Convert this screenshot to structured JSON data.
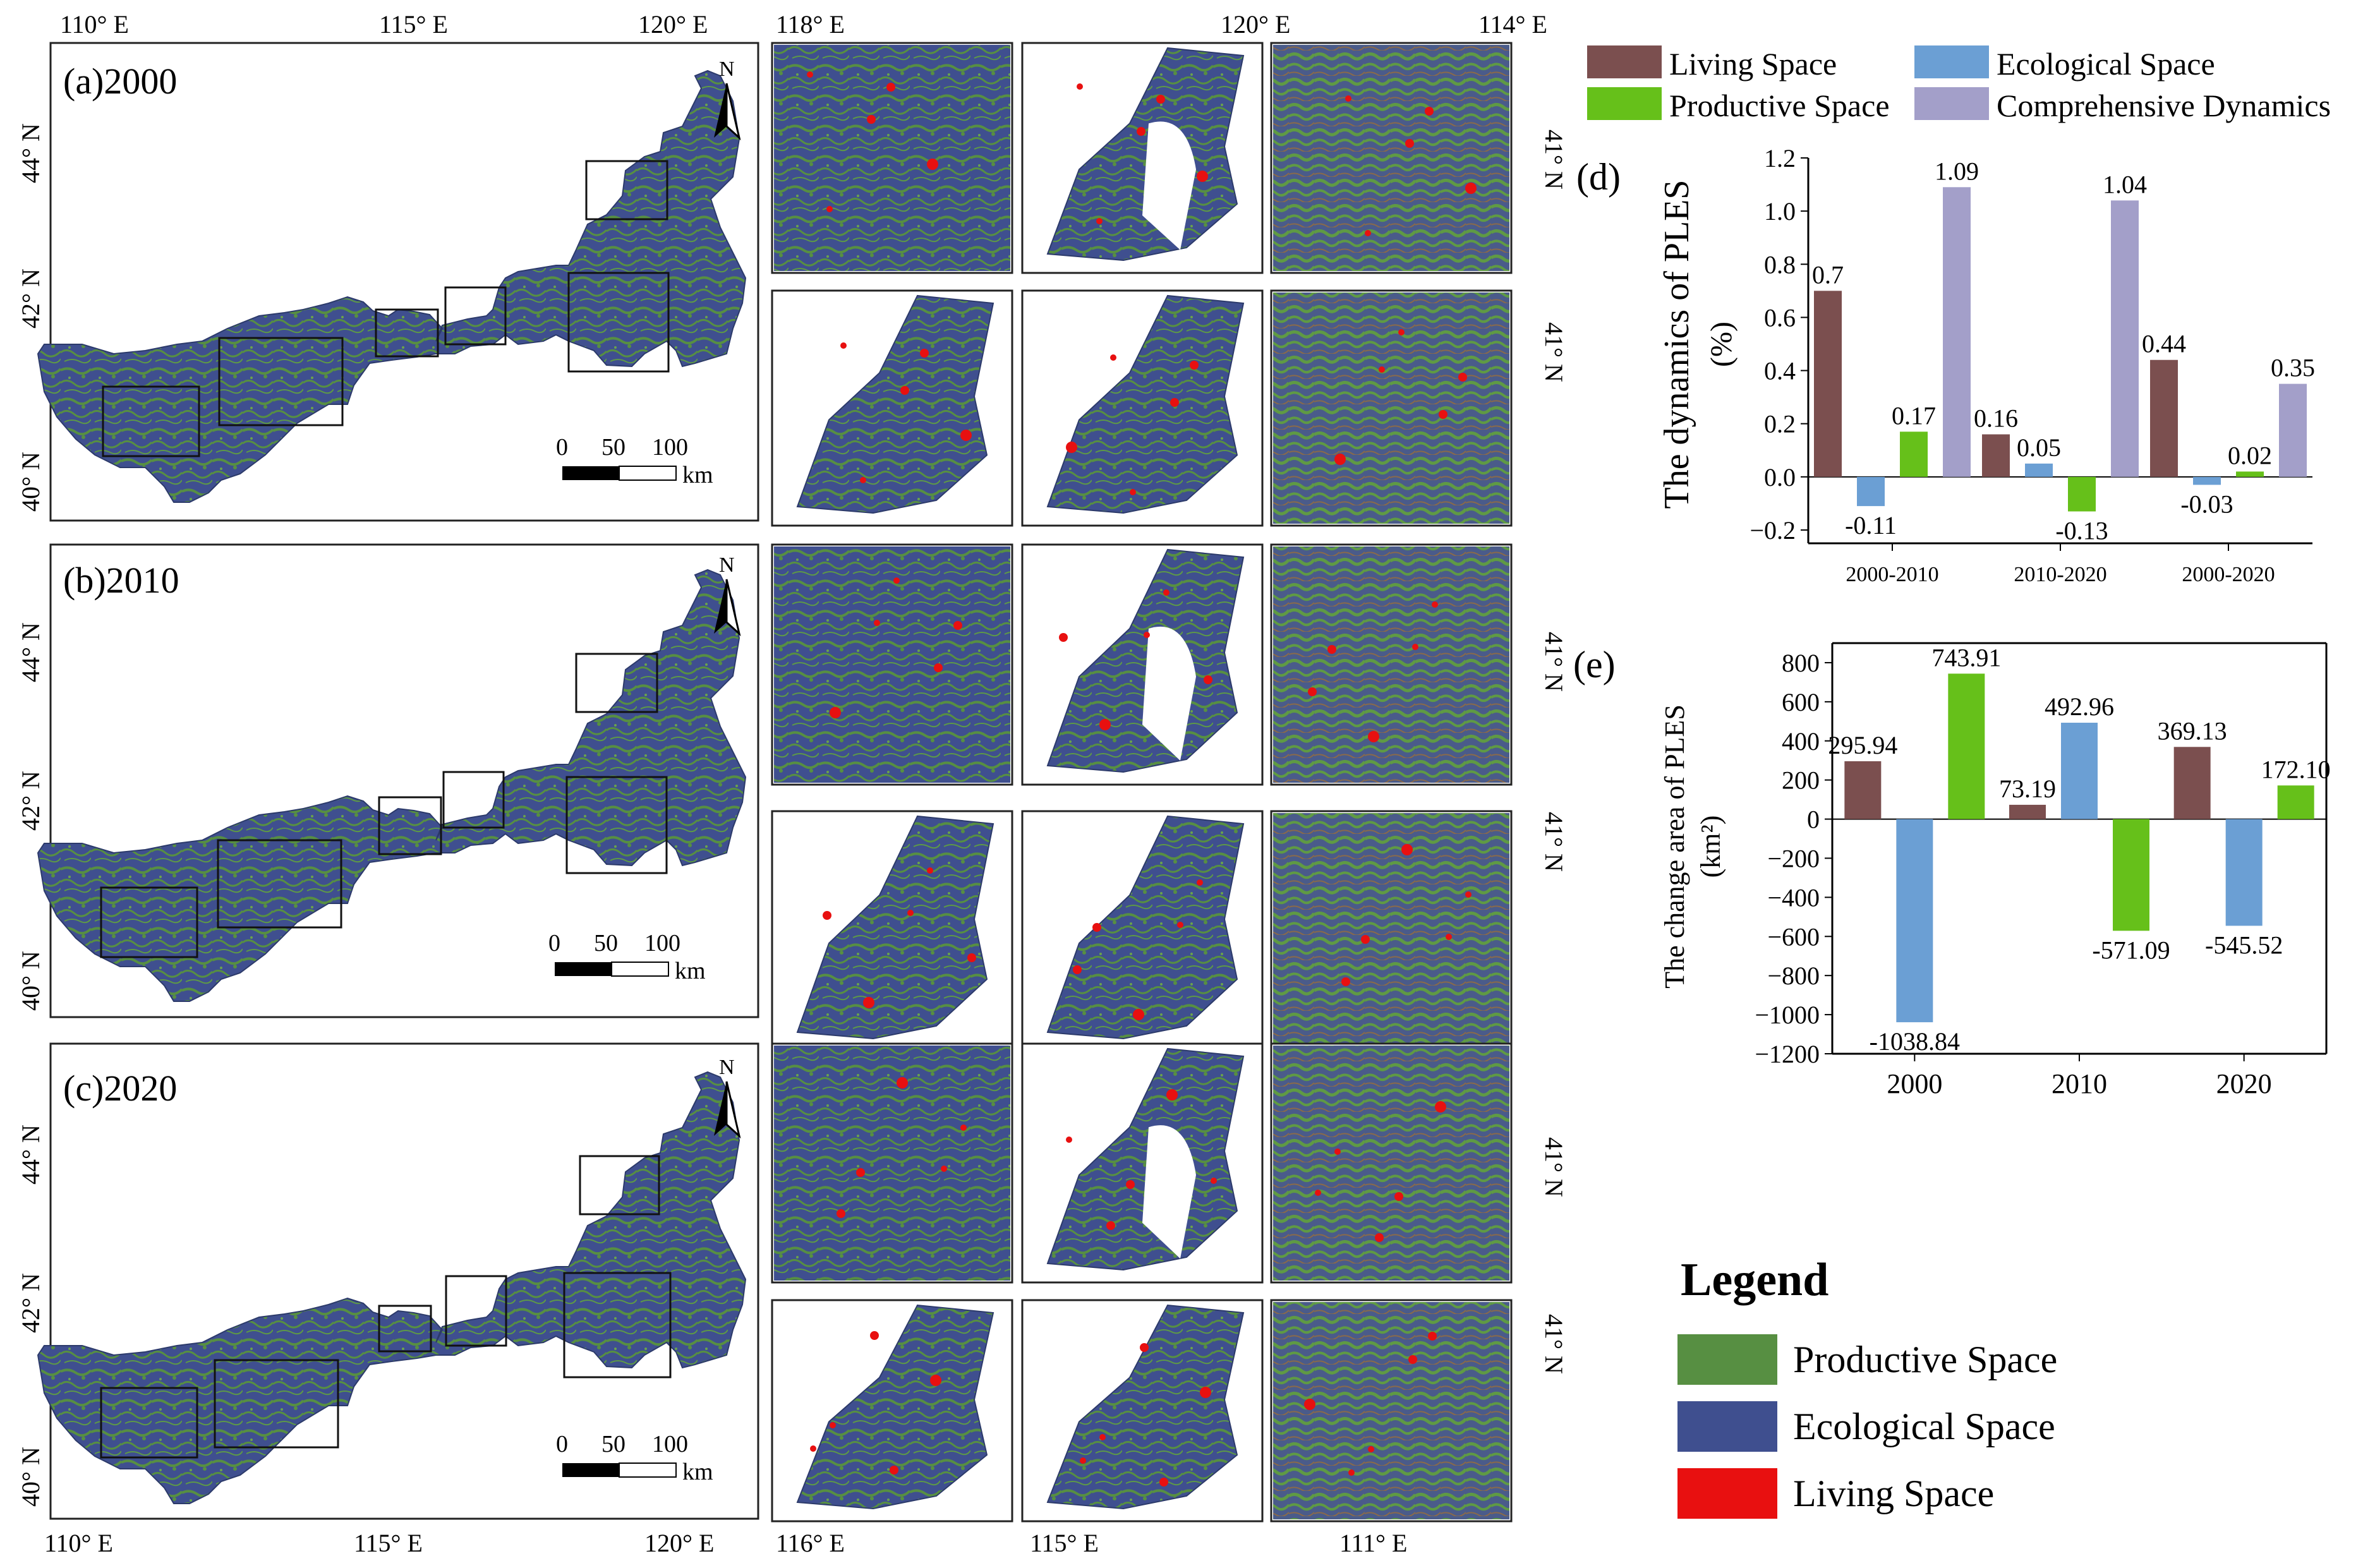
{
  "colors": {
    "living": "#7b4f4f",
    "ecological": "#6b9fd4",
    "productive": "#66c01a",
    "comprehensive": "#a39fc9",
    "map_productive": "#578f42",
    "map_ecological": "#3f4f8f",
    "map_living": "#e81010"
  },
  "maps": {
    "top_lon_labels": [
      "110° E",
      "115° E",
      "120° E"
    ],
    "bottom_lon_labels": [
      "110° E",
      "115° E",
      "120° E"
    ],
    "lat_labels": [
      "44° N",
      "42° N",
      "40° N"
    ],
    "north_label": "N",
    "scale_ticks": [
      "0",
      "50",
      "100"
    ],
    "scale_unit": "km",
    "panels": [
      {
        "label": "(a)2000"
      },
      {
        "label": "(b)2010"
      },
      {
        "label": "(c)2020"
      }
    ]
  },
  "insets": {
    "top_lon_labels": [
      "118° E",
      "120° E",
      "114° E"
    ],
    "bottom_lon_labels": [
      "116° E",
      "115° E",
      "111° E"
    ],
    "lat_label": "41° N"
  },
  "chart_data": [
    {
      "id": "d",
      "type": "bar",
      "panel_label": "(d)",
      "title": "",
      "ylabel": "The dynamics of PLES (%)",
      "ylabel_line1": "The dynamics of PLES",
      "ylabel_line2": "(%)",
      "xlabel": "",
      "categories": [
        "2000-2010",
        "2010-2020",
        "2000-2020"
      ],
      "ylim": [
        -0.25,
        1.2
      ],
      "yticks": [
        -0.2,
        0.0,
        0.2,
        0.4,
        0.6,
        0.8,
        1.0,
        1.2
      ],
      "ytick_labels": [
        "−0.2",
        "0.0",
        "0.2",
        "0.4",
        "0.6",
        "0.8",
        "1.0",
        "1.2"
      ],
      "series": [
        {
          "name": "Living Space",
          "key": "living",
          "values": [
            0.7,
            0.16,
            0.44
          ],
          "labels": [
            "0.7",
            "0.16",
            "0.44"
          ]
        },
        {
          "name": "Ecological Space",
          "key": "ecological",
          "values": [
            -0.11,
            0.05,
            -0.03
          ],
          "labels": [
            "-0.11",
            "0.05",
            "-0.03"
          ]
        },
        {
          "name": "Productive Space",
          "key": "productive",
          "values": [
            0.17,
            -0.13,
            0.02
          ],
          "labels": [
            "0.17",
            "-0.13",
            "0.02"
          ]
        },
        {
          "name": "Comprehensive Dynamics",
          "key": "comprehensive",
          "values": [
            1.09,
            1.04,
            0.35
          ],
          "labels": [
            "1.09",
            "1.04",
            "0.35"
          ]
        }
      ]
    },
    {
      "id": "e",
      "type": "bar",
      "panel_label": "(e)",
      "title": "",
      "ylabel": "The change area of PLES (km²)",
      "ylabel_line1": "The change area of PLES",
      "ylabel_line2": "(km²)",
      "xlabel": "",
      "categories": [
        "2000",
        "2010",
        "2020"
      ],
      "ylim": [
        -1200,
        900
      ],
      "yticks": [
        -1200,
        -1000,
        -800,
        -600,
        -400,
        -200,
        0,
        200,
        400,
        600,
        800
      ],
      "ytick_labels": [
        "−1200",
        "−1000",
        "−800",
        "−600",
        "−400",
        "−200",
        "0",
        "200",
        "400",
        "600",
        "800"
      ],
      "series": [
        {
          "name": "Living Space",
          "key": "living",
          "values": [
            295.94,
            73.19,
            369.13
          ],
          "labels": [
            "295.94",
            "73.19",
            "369.13"
          ]
        },
        {
          "name": "Ecological Space",
          "key": "ecological",
          "values": [
            -1038.84,
            492.96,
            -545.52
          ],
          "labels": [
            "-1038.84",
            "492.96",
            "-545.52"
          ]
        },
        {
          "name": "Productive Space",
          "key": "productive",
          "values": [
            743.91,
            -571.09,
            172.1
          ],
          "labels": [
            "743.91",
            "-571.09",
            "172.10"
          ]
        }
      ]
    }
  ],
  "chart_legend": [
    {
      "label": "Living Space",
      "key": "living"
    },
    {
      "label": "Ecological Space",
      "key": "ecological"
    },
    {
      "label": "Productive Space",
      "key": "productive"
    },
    {
      "label": "Comprehensive Dynamics",
      "key": "comprehensive"
    }
  ],
  "map_legend": {
    "title": "Legend",
    "items": [
      {
        "label": "Productive Space",
        "key": "map_productive"
      },
      {
        "label": "Ecological Space",
        "key": "map_ecological"
      },
      {
        "label": "Living Space",
        "key": "map_living"
      }
    ]
  }
}
